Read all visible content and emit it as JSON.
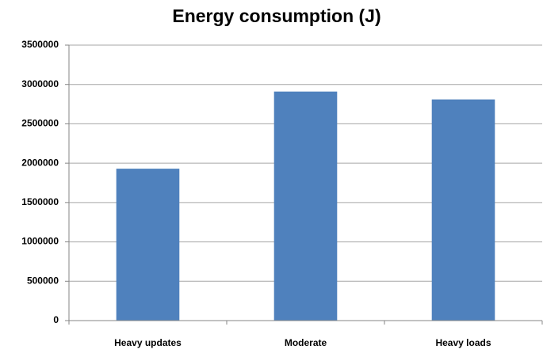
{
  "chart_data": {
    "type": "bar",
    "title": "Energy consumption (J)",
    "categories": [
      "Heavy updates",
      "Moderate",
      "Heavy loads"
    ],
    "values": [
      1930000,
      2910000,
      2810000
    ],
    "color": "#4f81bd",
    "ylim": [
      0,
      3500000
    ],
    "yticks": [
      0,
      500000,
      1000000,
      1500000,
      2000000,
      2500000,
      3000000,
      3500000
    ],
    "grid": true
  }
}
